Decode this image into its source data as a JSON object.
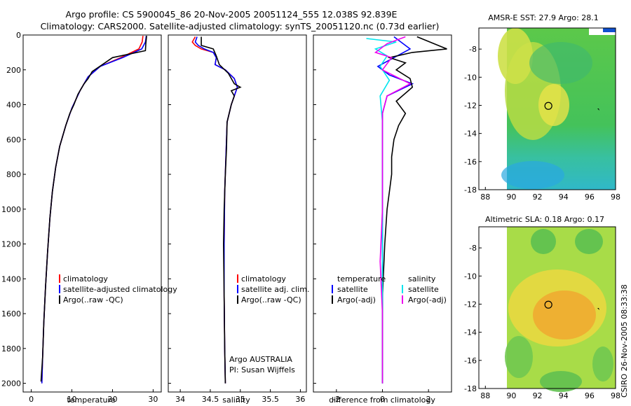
{
  "titles": {
    "line1": "Argo profile: CS 5900045_86 20-Nov-2005 20051124_555 12.038S 92.839E",
    "line2": "Climatology: CARS2000. Satellite-adjusted climatology: synTS_20051120.nc (0.73d earlier)",
    "map1": "AMSR-E SST: 27.9 Argo: 28.1",
    "map2": "Altimetric SLA: 0.18 Argo: 0.17",
    "credit": "CSIRO 26-Nov-2005 08:33:38"
  },
  "colors": {
    "climatology": "#ff0000",
    "satellite": "#0000ff",
    "argo": "#000000",
    "salinity_sat": "#00e5ee",
    "salinity_argo": "#ee00ee"
  },
  "chart_data": [
    {
      "type": "line",
      "name": "temperature",
      "xlabel": "temperature",
      "xlim": [
        -2,
        32
      ],
      "ylim": [
        2050,
        0
      ],
      "xticks": [
        "0",
        "10",
        "20",
        "30"
      ],
      "yticks": [
        "0",
        "200",
        "400",
        "600",
        "800",
        "1000",
        "1200",
        "1400",
        "1600",
        "1800",
        "2000"
      ],
      "legend": [
        "climatology",
        "satellite-adjusted climatology",
        "Argo(..raw -QC)"
      ],
      "series": [
        {
          "name": "climatology",
          "color": "red",
          "pts": [
            [
              27.5,
              5
            ],
            [
              27.3,
              40
            ],
            [
              26.5,
              80
            ],
            [
              22,
              130
            ],
            [
              17,
              180
            ],
            [
              14,
              240
            ],
            [
              12,
              320
            ],
            [
              10,
              420
            ],
            [
              8.5,
              520
            ],
            [
              7,
              640
            ],
            [
              6,
              760
            ],
            [
              5.2,
              900
            ],
            [
              4.6,
              1050
            ],
            [
              4,
              1250
            ],
            [
              3.5,
              1450
            ],
            [
              3.1,
              1650
            ],
            [
              2.8,
              1850
            ],
            [
              2.6,
              2000
            ]
          ]
        },
        {
          "name": "satellite-adjusted climatology",
          "color": "blue",
          "pts": [
            [
              28.3,
              5
            ],
            [
              28.1,
              40
            ],
            [
              27.2,
              80
            ],
            [
              22.5,
              130
            ],
            [
              17,
              180
            ],
            [
              14,
              240
            ],
            [
              12,
              320
            ],
            [
              10,
              420
            ],
            [
              8.5,
              520
            ],
            [
              7,
              640
            ],
            [
              6,
              760
            ],
            [
              5.2,
              900
            ],
            [
              4.6,
              1050
            ],
            [
              4,
              1250
            ],
            [
              3.5,
              1450
            ],
            [
              3.1,
              1650
            ],
            [
              2.8,
              1850
            ],
            [
              2.6,
              2000
            ]
          ]
        },
        {
          "name": "Argo(..raw -QC)",
          "color": "black",
          "pts": [
            [
              28.4,
              5
            ],
            [
              28.2,
              50
            ],
            [
              28.1,
              90
            ],
            [
              20,
              130
            ],
            [
              17.5,
              170
            ],
            [
              15,
              210
            ],
            [
              14,
              250
            ],
            [
              13,
              280
            ],
            [
              11.5,
              340
            ],
            [
              10.5,
              400
            ],
            [
              9.5,
              450
            ],
            [
              8.5,
              520
            ],
            [
              7,
              640
            ],
            [
              6,
              760
            ],
            [
              5.2,
              900
            ],
            [
              4.6,
              1050
            ],
            [
              4,
              1250
            ],
            [
              3.5,
              1450
            ],
            [
              3.1,
              1650
            ],
            [
              2.8,
              1850
            ],
            [
              2.4,
              1990
            ]
          ]
        }
      ]
    },
    {
      "type": "line",
      "name": "salinity",
      "xlabel": "salinity",
      "xlim": [
        33.8,
        36.1
      ],
      "ylim": [
        2050,
        0
      ],
      "xticks": [
        "34",
        "34.5",
        "35",
        "35.5",
        "36"
      ],
      "legend": [
        "climatology",
        "satellite adj. clim.",
        "Argo(..raw -QC)"
      ],
      "annotation": [
        "Argo AUSTRALIA",
        "PI: Susan Wijffels"
      ],
      "series": [
        {
          "name": "climatology",
          "color": "red",
          "pts": [
            [
              34.25,
              10
            ],
            [
              34.2,
              40
            ],
            [
              34.25,
              60
            ],
            [
              34.35,
              80
            ],
            [
              34.55,
              100
            ],
            [
              34.6,
              130
            ],
            [
              34.58,
              170
            ],
            [
              34.75,
              200
            ],
            [
              34.9,
              250
            ],
            [
              34.95,
              300
            ],
            [
              34.85,
              400
            ],
            [
              34.78,
              500
            ],
            [
              34.76,
              700
            ],
            [
              34.74,
              900
            ],
            [
              34.73,
              1200
            ],
            [
              34.73,
              1500
            ],
            [
              34.74,
              1800
            ],
            [
              34.75,
              2000
            ]
          ]
        },
        {
          "name": "satellite adj. clim.",
          "color": "blue",
          "pts": [
            [
              34.28,
              10
            ],
            [
              34.25,
              40
            ],
            [
              34.3,
              60
            ],
            [
              34.4,
              80
            ],
            [
              34.55,
              100
            ],
            [
              34.6,
              130
            ],
            [
              34.58,
              170
            ],
            [
              34.75,
              200
            ],
            [
              34.9,
              250
            ],
            [
              34.95,
              300
            ],
            [
              34.85,
              400
            ],
            [
              34.78,
              500
            ],
            [
              34.76,
              700
            ],
            [
              34.74,
              900
            ],
            [
              34.73,
              1200
            ],
            [
              34.73,
              1500
            ],
            [
              34.74,
              1800
            ],
            [
              34.75,
              2000
            ]
          ]
        },
        {
          "name": "Argo(..raw -QC)",
          "color": "black",
          "pts": [
            [
              34.35,
              10
            ],
            [
              34.35,
              60
            ],
            [
              34.55,
              80
            ],
            [
              34.6,
              120
            ],
            [
              34.65,
              170
            ],
            [
              34.8,
              220
            ],
            [
              34.9,
              280
            ],
            [
              35.0,
              300
            ],
            [
              34.85,
              320
            ],
            [
              34.9,
              350
            ],
            [
              34.85,
              400
            ],
            [
              34.78,
              500
            ],
            [
              34.77,
              650
            ],
            [
              34.75,
              800
            ],
            [
              34.73,
              1000
            ],
            [
              34.72,
              1200
            ],
            [
              34.73,
              1500
            ],
            [
              34.74,
              1800
            ],
            [
              34.75,
              2000
            ]
          ]
        }
      ]
    },
    {
      "type": "line",
      "name": "difference",
      "xlabel": "difference from climatology",
      "xlim": [
        -3,
        3
      ],
      "ylim": [
        2050,
        0
      ],
      "xticks": [
        "-2",
        "0",
        "2"
      ],
      "legend_temperature": {
        "header": "temperature",
        "items": [
          "satellite",
          "Argo(-adj)"
        ]
      },
      "legend_salinity": {
        "header": "salinity",
        "items": [
          "satellite",
          "Argo(-adj)"
        ]
      },
      "series": [
        {
          "name": "temperature satellite",
          "color": "blue",
          "pts": [
            [
              0.5,
              10
            ],
            [
              0.8,
              40
            ],
            [
              1.2,
              80
            ],
            [
              0.5,
              130
            ],
            [
              -0.2,
              180
            ],
            [
              0.3,
              230
            ],
            [
              1.3,
              280
            ],
            [
              0.2,
              350
            ],
            [
              0,
              450
            ],
            [
              0,
              600
            ],
            [
              0,
              800
            ],
            [
              0,
              1200
            ],
            [
              0,
              2000
            ]
          ]
        },
        {
          "name": "temperature Argo(-adj)",
          "color": "black",
          "pts": [
            [
              1.5,
              10
            ],
            [
              2.8,
              80
            ],
            [
              1.3,
              100
            ],
            [
              0.3,
              130
            ],
            [
              1.0,
              160
            ],
            [
              0.6,
              200
            ],
            [
              1.2,
              250
            ],
            [
              1.3,
              300
            ],
            [
              0.6,
              380
            ],
            [
              1.0,
              450
            ],
            [
              0.7,
              520
            ],
            [
              0.5,
              600
            ],
            [
              0.4,
              700
            ],
            [
              0.4,
              800
            ],
            [
              0.3,
              900
            ],
            [
              0.2,
              1000
            ],
            [
              0.1,
              1200
            ],
            [
              0,
              1500
            ],
            [
              0,
              2000
            ]
          ]
        },
        {
          "name": "salinity satellite",
          "color": "cyan",
          "pts": [
            [
              -0.7,
              20
            ],
            [
              0.6,
              40
            ],
            [
              -0.3,
              80
            ],
            [
              0.2,
              120
            ],
            [
              -0.1,
              180
            ],
            [
              0.3,
              260
            ],
            [
              -0.1,
              350
            ],
            [
              0,
              500
            ],
            [
              0,
              900
            ],
            [
              0,
              1400
            ],
            [
              0,
              2000
            ]
          ]
        },
        {
          "name": "salinity Argo(-adj)",
          "color": "magenta",
          "pts": [
            [
              1.0,
              10
            ],
            [
              0.2,
              50
            ],
            [
              -0.3,
              100
            ],
            [
              0.4,
              130
            ],
            [
              0,
              200
            ],
            [
              1.2,
              280
            ],
            [
              0.2,
              350
            ],
            [
              0,
              450
            ],
            [
              0,
              700
            ],
            [
              0,
              1000
            ],
            [
              -0.1,
              1300
            ],
            [
              0,
              1600
            ],
            [
              0,
              2000
            ]
          ]
        }
      ]
    },
    {
      "type": "heatmap",
      "name": "AMSR-E SST",
      "xlim": [
        87.5,
        98
      ],
      "ylim": [
        -18,
        -6.5
      ],
      "xticks": [
        "88",
        "90",
        "92",
        "94",
        "96",
        "98"
      ],
      "yticks": [
        "-8",
        "-10",
        "-12",
        "-14",
        "-16",
        "-18"
      ],
      "argo_point": [
        92.839,
        -12.038
      ]
    },
    {
      "type": "heatmap",
      "name": "Altimetric SLA",
      "xlim": [
        87.5,
        98
      ],
      "ylim": [
        -18,
        -6.5
      ],
      "xticks": [
        "88",
        "90",
        "92",
        "94",
        "96",
        "98"
      ],
      "yticks": [
        "-8",
        "-10",
        "-12",
        "-14",
        "-16",
        "-18"
      ],
      "argo_point": [
        92.839,
        -12.038
      ]
    }
  ]
}
